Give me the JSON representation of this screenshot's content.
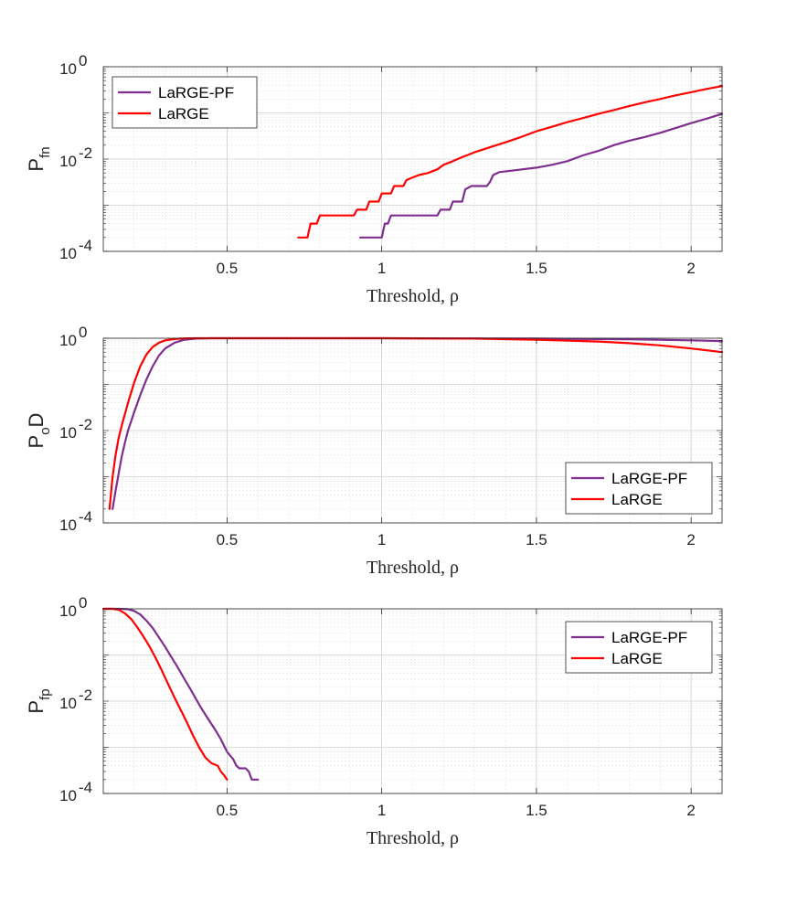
{
  "figure": {
    "background": "#ffffff"
  },
  "chart_data": [
    {
      "type": "line",
      "yscale": "log",
      "ylabel": {
        "base": "P",
        "sub": "fn"
      },
      "xlabel": "Threshold, ρ",
      "xlim": [
        0.1,
        2.1
      ],
      "ylim": [
        0.0001,
        1
      ],
      "xticks": [
        0.5,
        1,
        1.5,
        2
      ],
      "xtick_labels": [
        "0.5",
        "1",
        "1.5",
        "2"
      ],
      "yticks": [
        0.0001,
        0.01,
        1
      ],
      "ytick_labels": [
        {
          "base": "10",
          "exp": "-4"
        },
        {
          "base": "10",
          "exp": "-2"
        },
        {
          "base": "10",
          "exp": "0"
        }
      ],
      "grid": true,
      "legend": {
        "position": "top-left",
        "entries": [
          "LaRGE-PF",
          "LaRGE"
        ]
      },
      "series": [
        {
          "name": "LaRGE-PF",
          "color": "#7e2f8e",
          "x": [
            0.93,
            0.99,
            1.0,
            1.01,
            1.02,
            1.03,
            1.04,
            1.18,
            1.19,
            1.2,
            1.22,
            1.23,
            1.26,
            1.27,
            1.29,
            1.3,
            1.34,
            1.35,
            1.36,
            1.38,
            1.42,
            1.5,
            1.55,
            1.6,
            1.65,
            1.7,
            1.75,
            1.8,
            1.85,
            1.9,
            1.95,
            2.0,
            2.05,
            2.1
          ],
          "y": [
            0.0002,
            0.0002,
            0.0002,
            0.0004,
            0.0004,
            0.0006,
            0.0006,
            0.0006,
            0.0008,
            0.0008,
            0.0008,
            0.0012,
            0.0012,
            0.0022,
            0.0026,
            0.0026,
            0.0026,
            0.0032,
            0.0045,
            0.0052,
            0.0056,
            0.0065,
            0.0075,
            0.009,
            0.012,
            0.015,
            0.02,
            0.025,
            0.03,
            0.037,
            0.047,
            0.06,
            0.075,
            0.095
          ]
        },
        {
          "name": "LaRGE",
          "color": "#ff0000",
          "x": [
            0.73,
            0.76,
            0.77,
            0.79,
            0.8,
            0.81,
            0.91,
            0.92,
            0.95,
            0.96,
            0.99,
            1.0,
            1.03,
            1.04,
            1.07,
            1.08,
            1.1,
            1.12,
            1.15,
            1.18,
            1.2,
            1.23,
            1.26,
            1.3,
            1.35,
            1.4,
            1.45,
            1.5,
            1.55,
            1.6,
            1.65,
            1.7,
            1.75,
            1.8,
            1.85,
            1.9,
            1.95,
            2.0,
            2.05,
            2.1
          ],
          "y": [
            0.0002,
            0.0002,
            0.0004,
            0.0004,
            0.0006,
            0.0006,
            0.0006,
            0.0008,
            0.0008,
            0.0012,
            0.0012,
            0.0018,
            0.0018,
            0.0026,
            0.0026,
            0.0035,
            0.004,
            0.0045,
            0.005,
            0.006,
            0.0075,
            0.009,
            0.011,
            0.014,
            0.018,
            0.023,
            0.03,
            0.04,
            0.05,
            0.063,
            0.077,
            0.095,
            0.115,
            0.14,
            0.17,
            0.2,
            0.24,
            0.28,
            0.33,
            0.38
          ]
        }
      ]
    },
    {
      "type": "line",
      "yscale": "log",
      "ylabel": {
        "base": "P",
        "sub": "o",
        "suffix": "D"
      },
      "xlabel": "Threshold, ρ",
      "xlim": [
        0.1,
        2.1
      ],
      "ylim": [
        0.0001,
        1
      ],
      "xticks": [
        0.5,
        1,
        1.5,
        2
      ],
      "xtick_labels": [
        "0.5",
        "1",
        "1.5",
        "2"
      ],
      "yticks": [
        0.0001,
        0.01,
        1
      ],
      "ytick_labels": [
        {
          "base": "10",
          "exp": "-4"
        },
        {
          "base": "10",
          "exp": "-2"
        },
        {
          "base": "10",
          "exp": "0"
        }
      ],
      "grid": true,
      "legend": {
        "position": "bottom-right",
        "entries": [
          "LaRGE-PF",
          "LaRGE"
        ]
      },
      "series": [
        {
          "name": "LaRGE-PF",
          "color": "#7e2f8e",
          "x": [
            0.13,
            0.14,
            0.15,
            0.16,
            0.17,
            0.18,
            0.2,
            0.22,
            0.24,
            0.26,
            0.28,
            0.3,
            0.33,
            0.36,
            0.4,
            0.45,
            0.5,
            1.0,
            1.5,
            1.8,
            2.0,
            2.1
          ],
          "y": [
            0.0002,
            0.0005,
            0.0012,
            0.0028,
            0.0055,
            0.01,
            0.025,
            0.06,
            0.13,
            0.25,
            0.42,
            0.6,
            0.8,
            0.92,
            0.98,
            1.0,
            1.0,
            1.0,
            0.98,
            0.95,
            0.9,
            0.87
          ]
        },
        {
          "name": "LaRGE",
          "color": "#ff0000",
          "x": [
            0.12,
            0.13,
            0.14,
            0.15,
            0.16,
            0.18,
            0.2,
            0.22,
            0.24,
            0.26,
            0.28,
            0.3,
            0.33,
            0.36,
            0.4,
            0.45,
            0.5,
            1.0,
            1.3,
            1.5,
            1.7,
            1.8,
            1.9,
            2.0,
            2.1
          ],
          "y": [
            0.0002,
            0.001,
            0.003,
            0.007,
            0.013,
            0.04,
            0.11,
            0.25,
            0.45,
            0.65,
            0.8,
            0.9,
            0.96,
            0.99,
            1.0,
            1.0,
            1.0,
            1.0,
            0.98,
            0.93,
            0.85,
            0.78,
            0.7,
            0.6,
            0.5
          ]
        }
      ]
    },
    {
      "type": "line",
      "yscale": "log",
      "ylabel": {
        "base": "P",
        "sub": "fp"
      },
      "xlabel": "Threshold, ρ",
      "xlim": [
        0.1,
        2.1
      ],
      "ylim": [
        0.0001,
        1
      ],
      "xticks": [
        0.5,
        1,
        1.5,
        2
      ],
      "xtick_labels": [
        "0.5",
        "1",
        "1.5",
        "2"
      ],
      "yticks": [
        0.0001,
        0.01,
        1
      ],
      "ytick_labels": [
        {
          "base": "10",
          "exp": "-4"
        },
        {
          "base": "10",
          "exp": "-2"
        },
        {
          "base": "10",
          "exp": "0"
        }
      ],
      "grid": true,
      "legend": {
        "position": "top-right",
        "entries": [
          "LaRGE-PF",
          "LaRGE"
        ]
      },
      "series": [
        {
          "name": "LaRGE-PF",
          "color": "#7e2f8e",
          "x": [
            0.1,
            0.15,
            0.18,
            0.2,
            0.22,
            0.24,
            0.26,
            0.28,
            0.3,
            0.32,
            0.34,
            0.36,
            0.38,
            0.4,
            0.42,
            0.44,
            0.46,
            0.48,
            0.5,
            0.52,
            0.53,
            0.54,
            0.55,
            0.56,
            0.57,
            0.58,
            0.59,
            0.6
          ],
          "y": [
            1.0,
            1.0,
            0.98,
            0.9,
            0.75,
            0.55,
            0.38,
            0.24,
            0.15,
            0.09,
            0.055,
            0.032,
            0.019,
            0.011,
            0.0065,
            0.004,
            0.0025,
            0.0015,
            0.0008,
            0.00055,
            0.0004,
            0.00035,
            0.00035,
            0.00035,
            0.0003,
            0.0002,
            0.0002,
            0.0002
          ]
        },
        {
          "name": "LaRGE",
          "color": "#ff0000",
          "x": [
            0.1,
            0.13,
            0.15,
            0.17,
            0.19,
            0.21,
            0.23,
            0.25,
            0.27,
            0.29,
            0.31,
            0.33,
            0.35,
            0.37,
            0.39,
            0.41,
            0.43,
            0.45,
            0.47,
            0.48,
            0.49,
            0.5
          ],
          "y": [
            1.0,
            1.0,
            0.95,
            0.8,
            0.6,
            0.4,
            0.25,
            0.15,
            0.085,
            0.045,
            0.023,
            0.012,
            0.0065,
            0.0035,
            0.0018,
            0.001,
            0.0006,
            0.00045,
            0.0004,
            0.0003,
            0.00025,
            0.0002
          ]
        }
      ]
    }
  ]
}
